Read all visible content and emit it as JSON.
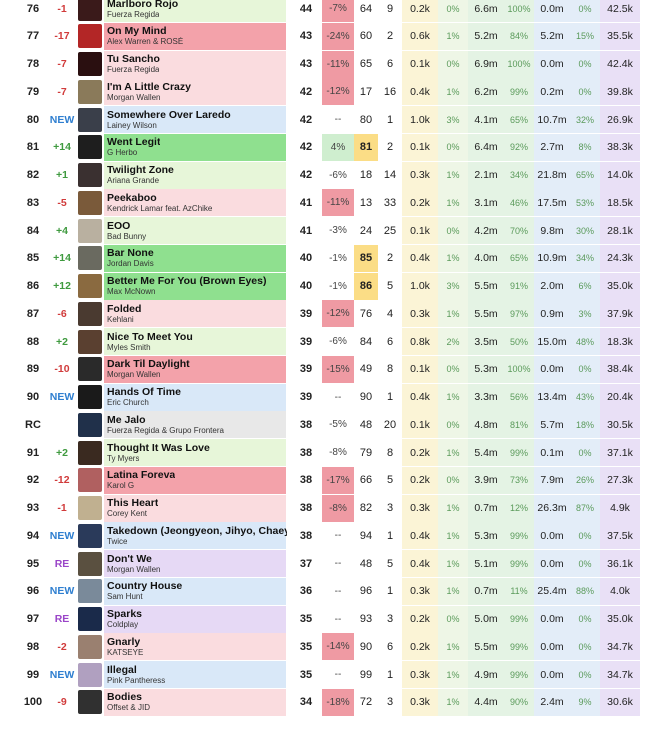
{
  "colors": {
    "up": "#3f9a3f",
    "down": "#d13b3b",
    "new": "#2f7fd0",
    "re": "#9a45c8",
    "neutral": "#222222",
    "pct_down_bg": "#ef9aa3",
    "pct_up_bg": "#cfeecf",
    "peak_highlight": "#fbdd86"
  },
  "rows": [
    {
      "rank": "76",
      "change": "-1",
      "change_type": "down",
      "title": "Marlboro Rojo",
      "artist": "Fuerza Regida",
      "bg": "#e7f6d9",
      "art": "#3a1a1a",
      "points": "44",
      "pct": "-7%",
      "pct_type": "down",
      "peak": "64",
      "peak_hl": false,
      "weeks": "9",
      "c1": "0.2k",
      "c2": "0%",
      "c3": "6.6m",
      "c4": "100%",
      "c5": "0.0m",
      "c6": "0%",
      "c7": "42.5k"
    },
    {
      "rank": "77",
      "change": "-17",
      "change_type": "down",
      "title": "On My Mind",
      "artist": "Alex Warren & ROSÉ",
      "bg": "#f3a2aa",
      "art": "#b32626",
      "points": "43",
      "pct": "-24%",
      "pct_type": "down",
      "peak": "60",
      "peak_hl": false,
      "weeks": "2",
      "c1": "0.6k",
      "c2": "1%",
      "c3": "5.2m",
      "c4": "84%",
      "c5": "5.2m",
      "c6": "15%",
      "c7": "35.5k"
    },
    {
      "rank": "78",
      "change": "-7",
      "change_type": "down",
      "title": "Tu Sancho",
      "artist": "Fuerza Regida",
      "bg": "#fadcdf",
      "art": "#2a0f10",
      "points": "43",
      "pct": "-11%",
      "pct_type": "down",
      "peak": "65",
      "peak_hl": false,
      "weeks": "6",
      "c1": "0.1k",
      "c2": "0%",
      "c3": "6.9m",
      "c4": "100%",
      "c5": "0.0m",
      "c6": "0%",
      "c7": "42.4k"
    },
    {
      "rank": "79",
      "change": "-7",
      "change_type": "down",
      "title": "I'm A Little Crazy",
      "artist": "Morgan Wallen",
      "bg": "#fadcdf",
      "art": "#8a7a5a",
      "points": "42",
      "pct": "-12%",
      "pct_type": "down",
      "peak": "17",
      "peak_hl": false,
      "weeks": "16",
      "c1": "0.4k",
      "c2": "1%",
      "c3": "6.2m",
      "c4": "99%",
      "c5": "0.2m",
      "c6": "0%",
      "c7": "39.8k"
    },
    {
      "rank": "80",
      "change": "NEW",
      "change_type": "new",
      "title": "Somewhere Over Laredo",
      "artist": "Lainey Wilson",
      "bg": "#d9e8f8",
      "art": "#3a3f4a",
      "points": "42",
      "pct": "--",
      "pct_type": "none",
      "peak": "80",
      "peak_hl": false,
      "weeks": "1",
      "c1": "1.0k",
      "c2": "3%",
      "c3": "4.1m",
      "c4": "65%",
      "c5": "10.7m",
      "c6": "32%",
      "c7": "26.9k"
    },
    {
      "rank": "81",
      "change": "+14",
      "change_type": "up",
      "title": "Went Legit",
      "artist": "G Herbo",
      "bg": "#8fe08f",
      "art": "#1e1e1e",
      "points": "42",
      "pct": "4%",
      "pct_type": "up",
      "peak": "81",
      "peak_hl": true,
      "weeks": "2",
      "c1": "0.1k",
      "c2": "0%",
      "c3": "6.4m",
      "c4": "92%",
      "c5": "2.7m",
      "c6": "8%",
      "c7": "38.3k"
    },
    {
      "rank": "82",
      "change": "+1",
      "change_type": "up",
      "title": "Twilight Zone",
      "artist": "Ariana Grande",
      "bg": "#e7f6d9",
      "art": "#3a3030",
      "points": "42",
      "pct": "-6%",
      "pct_type": "none",
      "peak": "18",
      "peak_hl": false,
      "weeks": "14",
      "c1": "0.3k",
      "c2": "1%",
      "c3": "2.1m",
      "c4": "34%",
      "c5": "21.8m",
      "c6": "65%",
      "c7": "14.0k"
    },
    {
      "rank": "83",
      "change": "-5",
      "change_type": "down",
      "title": "Peekaboo",
      "artist": "Kendrick Lamar feat. AzChike",
      "bg": "#fadcdf",
      "art": "#7a5a3a",
      "points": "41",
      "pct": "-11%",
      "pct_type": "down",
      "peak": "13",
      "peak_hl": false,
      "weeks": "33",
      "c1": "0.2k",
      "c2": "1%",
      "c3": "3.1m",
      "c4": "46%",
      "c5": "17.5m",
      "c6": "53%",
      "c7": "18.5k"
    },
    {
      "rank": "84",
      "change": "+4",
      "change_type": "up",
      "title": "EOO",
      "artist": "Bad Bunny",
      "bg": "#e7f6d9",
      "art": "#b9b0a0",
      "points": "41",
      "pct": "-3%",
      "pct_type": "none",
      "peak": "24",
      "peak_hl": false,
      "weeks": "25",
      "c1": "0.1k",
      "c2": "0%",
      "c3": "4.2m",
      "c4": "70%",
      "c5": "9.8m",
      "c6": "30%",
      "c7": "28.1k"
    },
    {
      "rank": "85",
      "change": "+14",
      "change_type": "up",
      "title": "Bar None",
      "artist": "Jordan Davis",
      "bg": "#8fe08f",
      "art": "#6a6a60",
      "points": "40",
      "pct": "-1%",
      "pct_type": "none",
      "peak": "85",
      "peak_hl": true,
      "weeks": "2",
      "c1": "0.4k",
      "c2": "1%",
      "c3": "4.0m",
      "c4": "65%",
      "c5": "10.9m",
      "c6": "34%",
      "c7": "24.3k"
    },
    {
      "rank": "86",
      "change": "+12",
      "change_type": "up",
      "title": "Better Me For You (Brown Eyes)",
      "artist": "Max McNown",
      "bg": "#8fe08f",
      "art": "#8a6a40",
      "points": "40",
      "pct": "-1%",
      "pct_type": "none",
      "peak": "86",
      "peak_hl": true,
      "weeks": "5",
      "c1": "1.0k",
      "c2": "3%",
      "c3": "5.5m",
      "c4": "91%",
      "c5": "2.0m",
      "c6": "6%",
      "c7": "35.0k"
    },
    {
      "rank": "87",
      "change": "-6",
      "change_type": "down",
      "title": "Folded",
      "artist": "Kehlani",
      "bg": "#fadcdf",
      "art": "#4a3a30",
      "points": "39",
      "pct": "-12%",
      "pct_type": "down",
      "peak": "76",
      "peak_hl": false,
      "weeks": "4",
      "c1": "0.3k",
      "c2": "1%",
      "c3": "5.5m",
      "c4": "97%",
      "c5": "0.9m",
      "c6": "3%",
      "c7": "37.9k"
    },
    {
      "rank": "88",
      "change": "+2",
      "change_type": "up",
      "title": "Nice To Meet You",
      "artist": "Myles Smith",
      "bg": "#e7f6d9",
      "art": "#5a4030",
      "points": "39",
      "pct": "-6%",
      "pct_type": "none",
      "peak": "84",
      "peak_hl": false,
      "weeks": "6",
      "c1": "0.8k",
      "c2": "2%",
      "c3": "3.5m",
      "c4": "50%",
      "c5": "15.0m",
      "c6": "48%",
      "c7": "18.3k"
    },
    {
      "rank": "89",
      "change": "-10",
      "change_type": "down",
      "title": "Dark Til Daylight",
      "artist": "Morgan Wallen",
      "bg": "#f3a2aa",
      "art": "#2a2a2a",
      "points": "39",
      "pct": "-15%",
      "pct_type": "down",
      "peak": "49",
      "peak_hl": false,
      "weeks": "8",
      "c1": "0.1k",
      "c2": "0%",
      "c3": "5.3m",
      "c4": "100%",
      "c5": "0.0m",
      "c6": "0%",
      "c7": "38.4k"
    },
    {
      "rank": "90",
      "change": "NEW",
      "change_type": "new",
      "title": "Hands Of Time",
      "artist": "Eric Church",
      "bg": "#d9e8f8",
      "art": "#1a1a1a",
      "points": "39",
      "pct": "--",
      "pct_type": "none",
      "peak": "90",
      "peak_hl": false,
      "weeks": "1",
      "c1": "0.4k",
      "c2": "1%",
      "c3": "3.3m",
      "c4": "56%",
      "c5": "13.4m",
      "c6": "43%",
      "c7": "20.4k"
    },
    {
      "rank": "RC",
      "change": "",
      "change_type": "neutral",
      "title": "Me Jalo",
      "artist": "Fuerza Regida & Grupo Frontera",
      "bg": "#e8e8e8",
      "art": "#20304a",
      "points": "38",
      "pct": "-5%",
      "pct_type": "none",
      "peak": "48",
      "peak_hl": false,
      "weeks": "20",
      "c1": "0.1k",
      "c2": "0%",
      "c3": "4.8m",
      "c4": "81%",
      "c5": "5.7m",
      "c6": "18%",
      "c7": "30.5k"
    },
    {
      "rank": "91",
      "change": "+2",
      "change_type": "up",
      "title": "Thought It Was Love",
      "artist": "Ty Myers",
      "bg": "#e7f6d9",
      "art": "#3a2a20",
      "points": "38",
      "pct": "-8%",
      "pct_type": "none",
      "peak": "79",
      "peak_hl": false,
      "weeks": "8",
      "c1": "0.2k",
      "c2": "1%",
      "c3": "5.4m",
      "c4": "99%",
      "c5": "0.1m",
      "c6": "0%",
      "c7": "37.1k"
    },
    {
      "rank": "92",
      "change": "-12",
      "change_type": "down",
      "title": "Latina Foreva",
      "artist": "Karol G",
      "bg": "#f3a2aa",
      "art": "#b06060",
      "points": "38",
      "pct": "-17%",
      "pct_type": "down",
      "peak": "66",
      "peak_hl": false,
      "weeks": "5",
      "c1": "0.2k",
      "c2": "0%",
      "c3": "3.9m",
      "c4": "73%",
      "c5": "7.9m",
      "c6": "26%",
      "c7": "27.3k"
    },
    {
      "rank": "93",
      "change": "-1",
      "change_type": "down",
      "title": "This Heart",
      "artist": "Corey Kent",
      "bg": "#fadcdf",
      "art": "#c0b090",
      "points": "38",
      "pct": "-8%",
      "pct_type": "down",
      "peak": "82",
      "peak_hl": false,
      "weeks": "3",
      "c1": "0.3k",
      "c2": "1%",
      "c3": "0.7m",
      "c4": "12%",
      "c5": "26.3m",
      "c6": "87%",
      "c7": "4.9k"
    },
    {
      "rank": "94",
      "change": "NEW",
      "change_type": "new",
      "title": "Takedown (Jeongyeon, Jihyo, Chaeyoung)",
      "artist": "Twice",
      "bg": "#d9e8f8",
      "art": "#2a3a5a",
      "points": "38",
      "pct": "--",
      "pct_type": "none",
      "peak": "94",
      "peak_hl": false,
      "weeks": "1",
      "c1": "0.4k",
      "c2": "1%",
      "c3": "5.3m",
      "c4": "99%",
      "c5": "0.0m",
      "c6": "0%",
      "c7": "37.5k"
    },
    {
      "rank": "95",
      "change": "RE",
      "change_type": "re",
      "title": "Don't We",
      "artist": "Morgan Wallen",
      "bg": "#e6d9f5",
      "art": "#5a5040",
      "points": "37",
      "pct": "--",
      "pct_type": "none",
      "peak": "48",
      "peak_hl": false,
      "weeks": "5",
      "c1": "0.4k",
      "c2": "1%",
      "c3": "5.1m",
      "c4": "99%",
      "c5": "0.0m",
      "c6": "0%",
      "c7": "36.1k"
    },
    {
      "rank": "96",
      "change": "NEW",
      "change_type": "new",
      "title": "Country House",
      "artist": "Sam Hunt",
      "bg": "#d9e8f8",
      "art": "#7a8a9a",
      "points": "36",
      "pct": "--",
      "pct_type": "none",
      "peak": "96",
      "peak_hl": false,
      "weeks": "1",
      "c1": "0.3k",
      "c2": "1%",
      "c3": "0.7m",
      "c4": "11%",
      "c5": "25.4m",
      "c6": "88%",
      "c7": "4.0k"
    },
    {
      "rank": "97",
      "change": "RE",
      "change_type": "re",
      "title": "Sparks",
      "artist": "Coldplay",
      "bg": "#e6d9f5",
      "art": "#1a2a4a",
      "points": "35",
      "pct": "--",
      "pct_type": "none",
      "peak": "93",
      "peak_hl": false,
      "weeks": "3",
      "c1": "0.2k",
      "c2": "0%",
      "c3": "5.0m",
      "c4": "99%",
      "c5": "0.0m",
      "c6": "0%",
      "c7": "35.0k"
    },
    {
      "rank": "98",
      "change": "-2",
      "change_type": "down",
      "title": "Gnarly",
      "artist": "KATSEYE",
      "bg": "#fadcdf",
      "art": "#9a8070",
      "points": "35",
      "pct": "-14%",
      "pct_type": "down",
      "peak": "90",
      "peak_hl": false,
      "weeks": "6",
      "c1": "0.2k",
      "c2": "1%",
      "c3": "5.5m",
      "c4": "99%",
      "c5": "0.0m",
      "c6": "0%",
      "c7": "34.7k"
    },
    {
      "rank": "99",
      "change": "NEW",
      "change_type": "new",
      "title": "Illegal",
      "artist": "Pink Pantheress",
      "bg": "#d9e8f8",
      "art": "#b0a0c0",
      "points": "35",
      "pct": "--",
      "pct_type": "none",
      "peak": "99",
      "peak_hl": false,
      "weeks": "1",
      "c1": "0.3k",
      "c2": "1%",
      "c3": "4.9m",
      "c4": "99%",
      "c5": "0.0m",
      "c6": "0%",
      "c7": "34.7k"
    },
    {
      "rank": "100",
      "change": "-9",
      "change_type": "down",
      "title": "Bodies",
      "artist": "Offset & JID",
      "bg": "#fadcdf",
      "art": "#303030",
      "points": "34",
      "pct": "-18%",
      "pct_type": "down",
      "peak": "72",
      "peak_hl": false,
      "weeks": "3",
      "c1": "0.3k",
      "c2": "1%",
      "c3": "4.4m",
      "c4": "90%",
      "c5": "2.4m",
      "c6": "9%",
      "c7": "30.6k"
    }
  ]
}
